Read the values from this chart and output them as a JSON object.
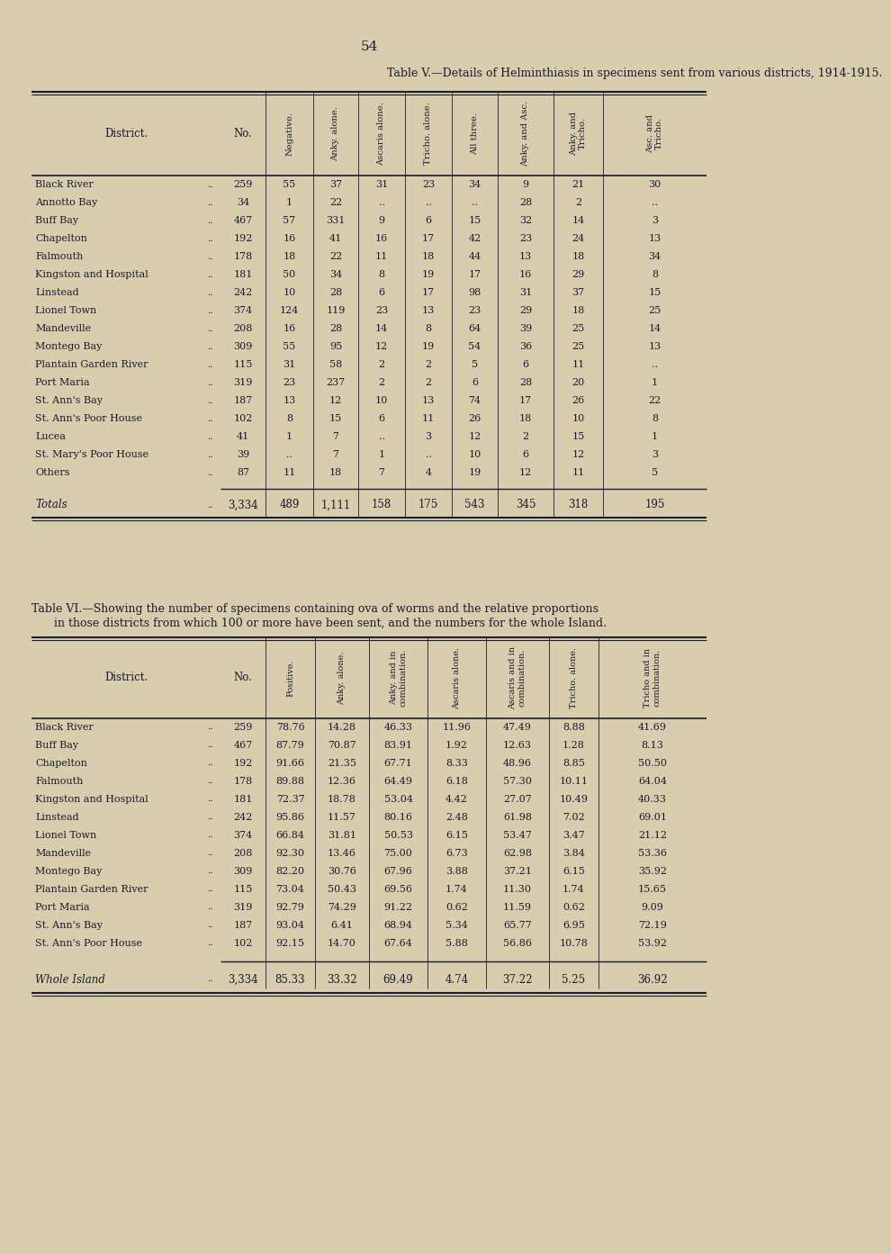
{
  "bg_color": "#d8cead",
  "text_color": "#1a1a30",
  "page_number": "54",
  "table1_title": "Table V.—Details of Helminthiasis in specimens sent from various districts, 1914-1915.",
  "table1_col_headers": [
    "District.",
    "No.",
    "Negative.",
    "Anky. alone.",
    "Ascaris alone.",
    "Tricho. alone.",
    "All three.",
    "Anky. and Asc.",
    "Anky. and Tricho.",
    "Asc. and Tricho."
  ],
  "table1_rows": [
    [
      "Black River",
      "259",
      "55",
      "37",
      "31",
      "23",
      "34",
      "9",
      "21",
      "30"
    ],
    [
      "Annotto Bay",
      "34",
      "1",
      "22",
      "..",
      "..",
      "..",
      "28",
      "2",
      ".."
    ],
    [
      "Buff Bay",
      "467",
      "57",
      "331",
      "9",
      "6",
      "15",
      "32",
      "14",
      "3"
    ],
    [
      "Chapelton",
      "192",
      "16",
      "41",
      "16",
      "17",
      "42",
      "23",
      "24",
      "13"
    ],
    [
      "Falmouth",
      "178",
      "18",
      "22",
      "11",
      "18",
      "44",
      "13",
      "18",
      "34"
    ],
    [
      "Kingston and Hospital",
      "181",
      "50",
      "34",
      "8",
      "19",
      "17",
      "16",
      "29",
      "8"
    ],
    [
      "Linstead",
      "242",
      "10",
      "28",
      "6",
      "17",
      "98",
      "31",
      "37",
      "15"
    ],
    [
      "Lionel Town",
      "374",
      "124",
      "119",
      "23",
      "13",
      "23",
      "29",
      "18",
      "25"
    ],
    [
      "Mandeville",
      "208",
      "16",
      "28",
      "14",
      "8",
      "64",
      "39",
      "25",
      "14"
    ],
    [
      "Montego Bay",
      "309",
      "55",
      "95",
      "12",
      "19",
      "54",
      "36",
      "25",
      "13"
    ],
    [
      "Plantain Garden River",
      "115",
      "31",
      "58",
      "2",
      "2",
      "5",
      "6",
      "11",
      ".."
    ],
    [
      "Port Maria",
      "319",
      "23",
      "237",
      "2",
      "2",
      "6",
      "28",
      "20",
      "1"
    ],
    [
      "St. Ann's Bay",
      "187",
      "13",
      "12",
      "10",
      "13",
      "74",
      "17",
      "26",
      "22"
    ],
    [
      "St. Ann's Poor House",
      "102",
      "8",
      "15",
      "6",
      "11",
      "26",
      "18",
      "10",
      "8"
    ],
    [
      "Lucea",
      "41",
      "1",
      "7",
      "..",
      "3",
      "12",
      "2",
      "15",
      "1"
    ],
    [
      "St. Mary's Poor House",
      "39",
      "..",
      "7",
      "1",
      "..",
      "10",
      "6",
      "12",
      "3"
    ],
    [
      "Others",
      "87",
      "11",
      "18",
      "7",
      "4",
      "19",
      "12",
      "11",
      "5"
    ]
  ],
  "table1_totals": [
    "Totals",
    "3,334",
    "489",
    "1,111",
    "158",
    "175",
    "543",
    "345",
    "318",
    "195"
  ],
  "table2_title_line1": "Table VI.—Showing the number of specimens containing ova of worms and the relative proportions",
  "table2_title_line2": "in those districts from which 100 or more have been sent, and the numbers for the whole Island.",
  "table2_col_headers": [
    "District.",
    "No.",
    "Positive.",
    "Anky. alone.",
    "Anky. and in combination.",
    "Ascaris alone.",
    "Ascaris and in combination.",
    "Tricho. alone.",
    "Tricho and in combination."
  ],
  "table2_rows": [
    [
      "Black River",
      "259",
      "78.76",
      "14.28",
      "46.33",
      "11.96",
      "47.49",
      "8.88",
      "41.69"
    ],
    [
      "Buff Bay",
      "467",
      "87.79",
      "70.87",
      "83.91",
      "1.92",
      "12.63",
      "1.28",
      "8.13"
    ],
    [
      "Chapelton",
      "192",
      "91.66",
      "21.35",
      "67.71",
      "8.33",
      "48.96",
      "8.85",
      "50.50"
    ],
    [
      "Falmouth",
      "178",
      "89.88",
      "12.36",
      "64.49",
      "6.18",
      "57.30",
      "10.11",
      "64.04"
    ],
    [
      "Kingston and Hospital",
      "181",
      "72.37",
      "18.78",
      "53.04",
      "4.42",
      "27.07",
      "10.49",
      "40.33"
    ],
    [
      "Linstead",
      "242",
      "95.86",
      "11.57",
      "80.16",
      "2.48",
      "61.98",
      "7.02",
      "69.01"
    ],
    [
      "Lionel Town",
      "374",
      "66.84",
      "31.81",
      "50.53",
      "6.15",
      "53.47",
      "3.47",
      "21.12"
    ],
    [
      "Mandeville",
      "208",
      "92.30",
      "13.46",
      "75.00",
      "6.73",
      "62.98",
      "3.84",
      "53.36"
    ],
    [
      "Montego Bay",
      "309",
      "82.20",
      "30.76",
      "67.96",
      "3.88",
      "37.21",
      "6.15",
      "35.92"
    ],
    [
      "Plantain Garden River",
      "115",
      "73.04",
      "50.43",
      "69.56",
      "1.74",
      "11.30",
      "1.74",
      "15.65"
    ],
    [
      "Port Maria",
      "319",
      "92.79",
      "74.29",
      "91.22",
      "0.62",
      "11.59",
      "0.62",
      "9.09"
    ],
    [
      "St. Ann's Bay",
      "187",
      "93.04",
      "6.41",
      "68.94",
      "5.34",
      "65.77",
      "6.95",
      "72.19"
    ],
    [
      "St. Ann's Poor House",
      "102",
      "92.15",
      "14.70",
      "67.64",
      "5.88",
      "56.86",
      "10.78",
      "53.92"
    ]
  ],
  "table2_totals": [
    "Whole Island",
    "3,334",
    "85.33",
    "33.32",
    "69.49",
    "4.74",
    "37.22",
    "5.25",
    "36.92"
  ]
}
